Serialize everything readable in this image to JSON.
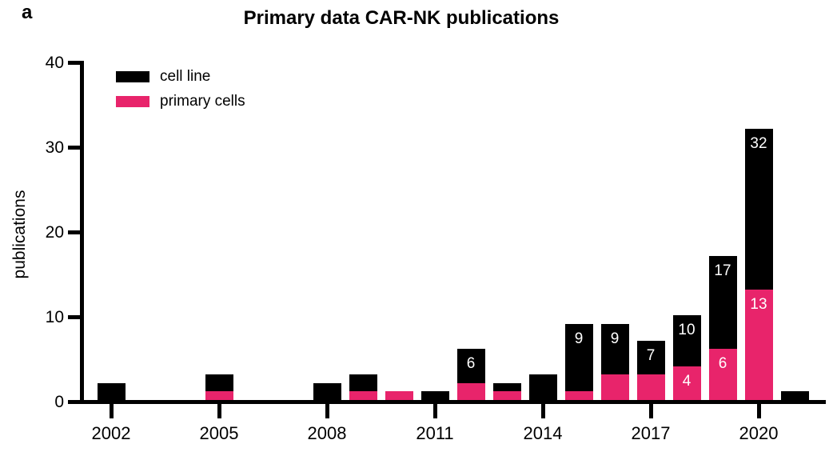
{
  "panel_label": "a",
  "chart_data": {
    "type": "bar",
    "stacked": true,
    "title": "Primary data CAR-NK publications",
    "xlabel": "",
    "ylabel": "publications",
    "ylim": [
      0,
      40
    ],
    "yticks": [
      0,
      10,
      20,
      30,
      40
    ],
    "xtick_years": [
      2002,
      2005,
      2008,
      2011,
      2014,
      2017,
      2020
    ],
    "grid": false,
    "legend_position": "top-left-inside",
    "colors": {
      "cell_line": "#000000",
      "primary_cells": "#E8246B",
      "axis": "#000000",
      "bar_label_text": "#FFFFFF"
    },
    "legend": [
      {
        "name": "cell line",
        "color": "#000000"
      },
      {
        "name": "primary cells",
        "color": "#E8246B"
      }
    ],
    "categories": [
      2002,
      2003,
      2004,
      2005,
      2006,
      2007,
      2008,
      2009,
      2010,
      2011,
      2012,
      2013,
      2014,
      2015,
      2016,
      2017,
      2018,
      2019,
      2020,
      2021
    ],
    "series": [
      {
        "name": "cell line",
        "values": [
          2,
          0,
          0,
          2,
          0,
          0,
          2,
          2,
          0,
          1,
          4,
          1,
          3,
          8,
          6,
          4,
          6,
          11,
          19,
          1
        ]
      },
      {
        "name": "primary cells",
        "values": [
          0,
          0,
          0,
          1,
          0,
          0,
          0,
          1,
          1,
          0,
          2,
          1,
          0,
          1,
          3,
          3,
          4,
          6,
          13,
          0
        ]
      }
    ],
    "totals": [
      2,
      0,
      0,
      3,
      0,
      0,
      2,
      3,
      1,
      1,
      6,
      2,
      3,
      9,
      9,
      7,
      10,
      17,
      32,
      1
    ],
    "bar_value_labels": {
      "totals": {
        "2012": "6",
        "2015": "9",
        "2016": "9",
        "2017": "7",
        "2018": "10",
        "2019": "17",
        "2020": "32"
      },
      "primary_cells": {
        "2018": "4",
        "2019": "6",
        "2020": "13"
      }
    }
  }
}
